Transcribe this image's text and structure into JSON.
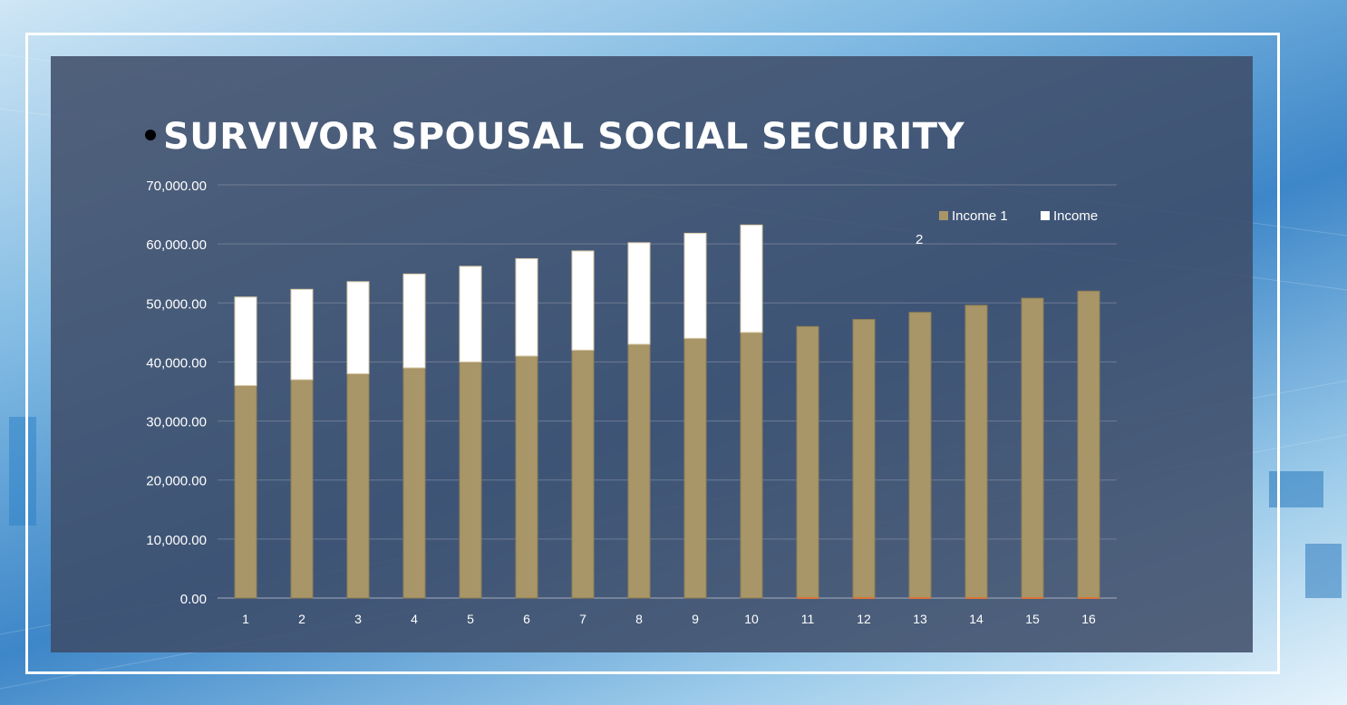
{
  "slide": {
    "title": "SURVIVOR SPOUSAL SOCIAL SECURITY"
  },
  "colors": {
    "income1": "#a89668",
    "income2": "#ffffff",
    "panel": "#3e4c68",
    "axis_text": "#ffffff",
    "gridline": "#8a93a6"
  },
  "chart_data": {
    "type": "bar",
    "stacked": true,
    "title": "",
    "xlabel": "",
    "ylabel": "",
    "ylim": [
      0,
      70000
    ],
    "yticks": [
      "0.00",
      "10,000.00",
      "20,000.00",
      "30,000.00",
      "40,000.00",
      "50,000.00",
      "60,000.00",
      "70,000.00"
    ],
    "categories": [
      "1",
      "2",
      "3",
      "4",
      "5",
      "6",
      "7",
      "8",
      "9",
      "10",
      "11",
      "12",
      "13",
      "14",
      "15",
      "16"
    ],
    "series": [
      {
        "name": "Income 1",
        "values": [
          36000,
          37000,
          38000,
          39000,
          40000,
          41000,
          42000,
          43000,
          44000,
          45000,
          46000,
          47200,
          48400,
          49600,
          50800,
          52000
        ]
      },
      {
        "name": "Income 2",
        "values": [
          15000,
          15300,
          15600,
          15900,
          16200,
          16500,
          16800,
          17200,
          17800,
          18200,
          0,
          0,
          0,
          0,
          0,
          0
        ]
      }
    ],
    "legend": {
      "position": "top-right",
      "entries": [
        "Income 1",
        "Income",
        "2"
      ]
    }
  }
}
